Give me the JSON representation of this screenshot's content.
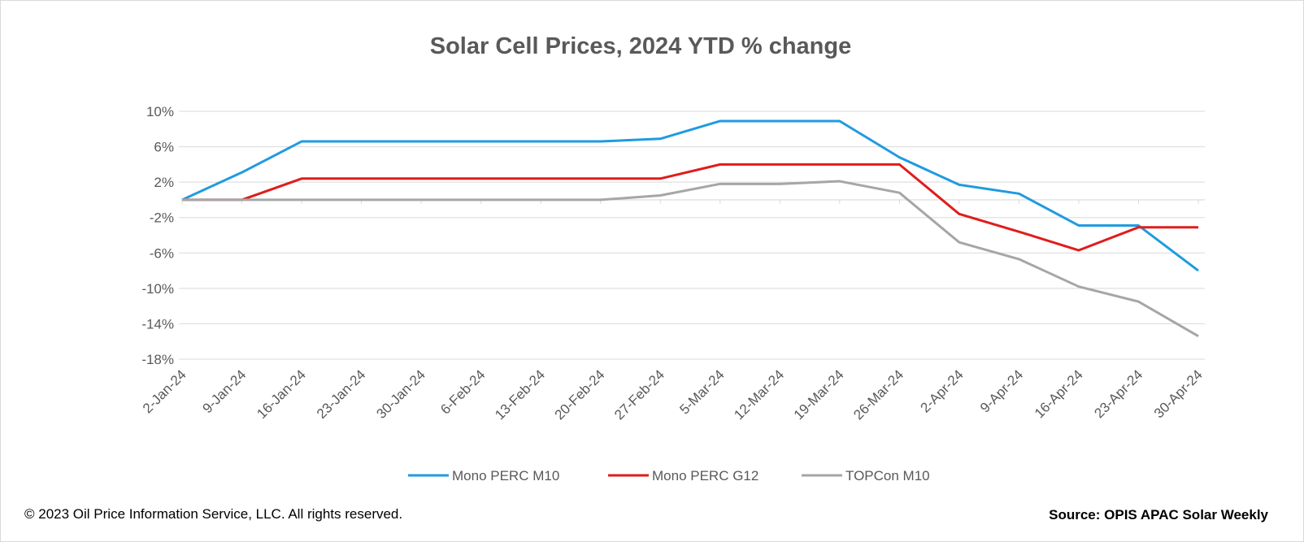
{
  "chart_data": {
    "type": "line",
    "title": "Solar Cell Prices, 2024 YTD % change",
    "xlabel": "",
    "ylabel": "",
    "categories": [
      "2-Jan-24",
      "9-Jan-24",
      "16-Jan-24",
      "23-Jan-24",
      "30-Jan-24",
      "6-Feb-24",
      "13-Feb-24",
      "20-Feb-24",
      "27-Feb-24",
      "5-Mar-24",
      "12-Mar-24",
      "19-Mar-24",
      "26-Mar-24",
      "2-Apr-24",
      "9-Apr-24",
      "16-Apr-24",
      "23-Apr-24",
      "30-Apr-24"
    ],
    "ylim": [
      -18,
      10
    ],
    "yticks": [
      10,
      6,
      2,
      -2,
      -6,
      -10,
      -14,
      -18
    ],
    "ytick_labels": [
      "10%",
      "6%",
      "2%",
      "-2%",
      "-6%",
      "-10%",
      "-14%",
      "-18%"
    ],
    "grid": true,
    "legend_position": "bottom",
    "series": [
      {
        "name": "Mono PERC M10",
        "color": "#1f9be0",
        "values": [
          0,
          3.1,
          6.6,
          6.6,
          6.6,
          6.6,
          6.6,
          6.6,
          6.9,
          8.9,
          8.9,
          8.9,
          4.8,
          1.7,
          0.7,
          -2.9,
          -2.9,
          -8.0
        ]
      },
      {
        "name": "Mono PERC G12",
        "color": "#e01c1c",
        "values": [
          0,
          0,
          2.4,
          2.4,
          2.4,
          2.4,
          2.4,
          2.4,
          2.4,
          4.0,
          4.0,
          4.0,
          4.0,
          -1.6,
          -3.6,
          -5.7,
          -3.1,
          -3.1
        ]
      },
      {
        "name": "TOPCon M10",
        "color": "#a6a6a6",
        "values": [
          0,
          0,
          0,
          0,
          0,
          0,
          0,
          0,
          0.5,
          1.8,
          1.8,
          2.1,
          0.8,
          -4.8,
          -6.7,
          -9.8,
          -11.5,
          -15.4
        ]
      }
    ]
  },
  "footer": {
    "copyright": "© 2023 Oil Price Information Service, LLC. All rights reserved.",
    "source": "Source: OPIS APAC Solar Weekly"
  }
}
